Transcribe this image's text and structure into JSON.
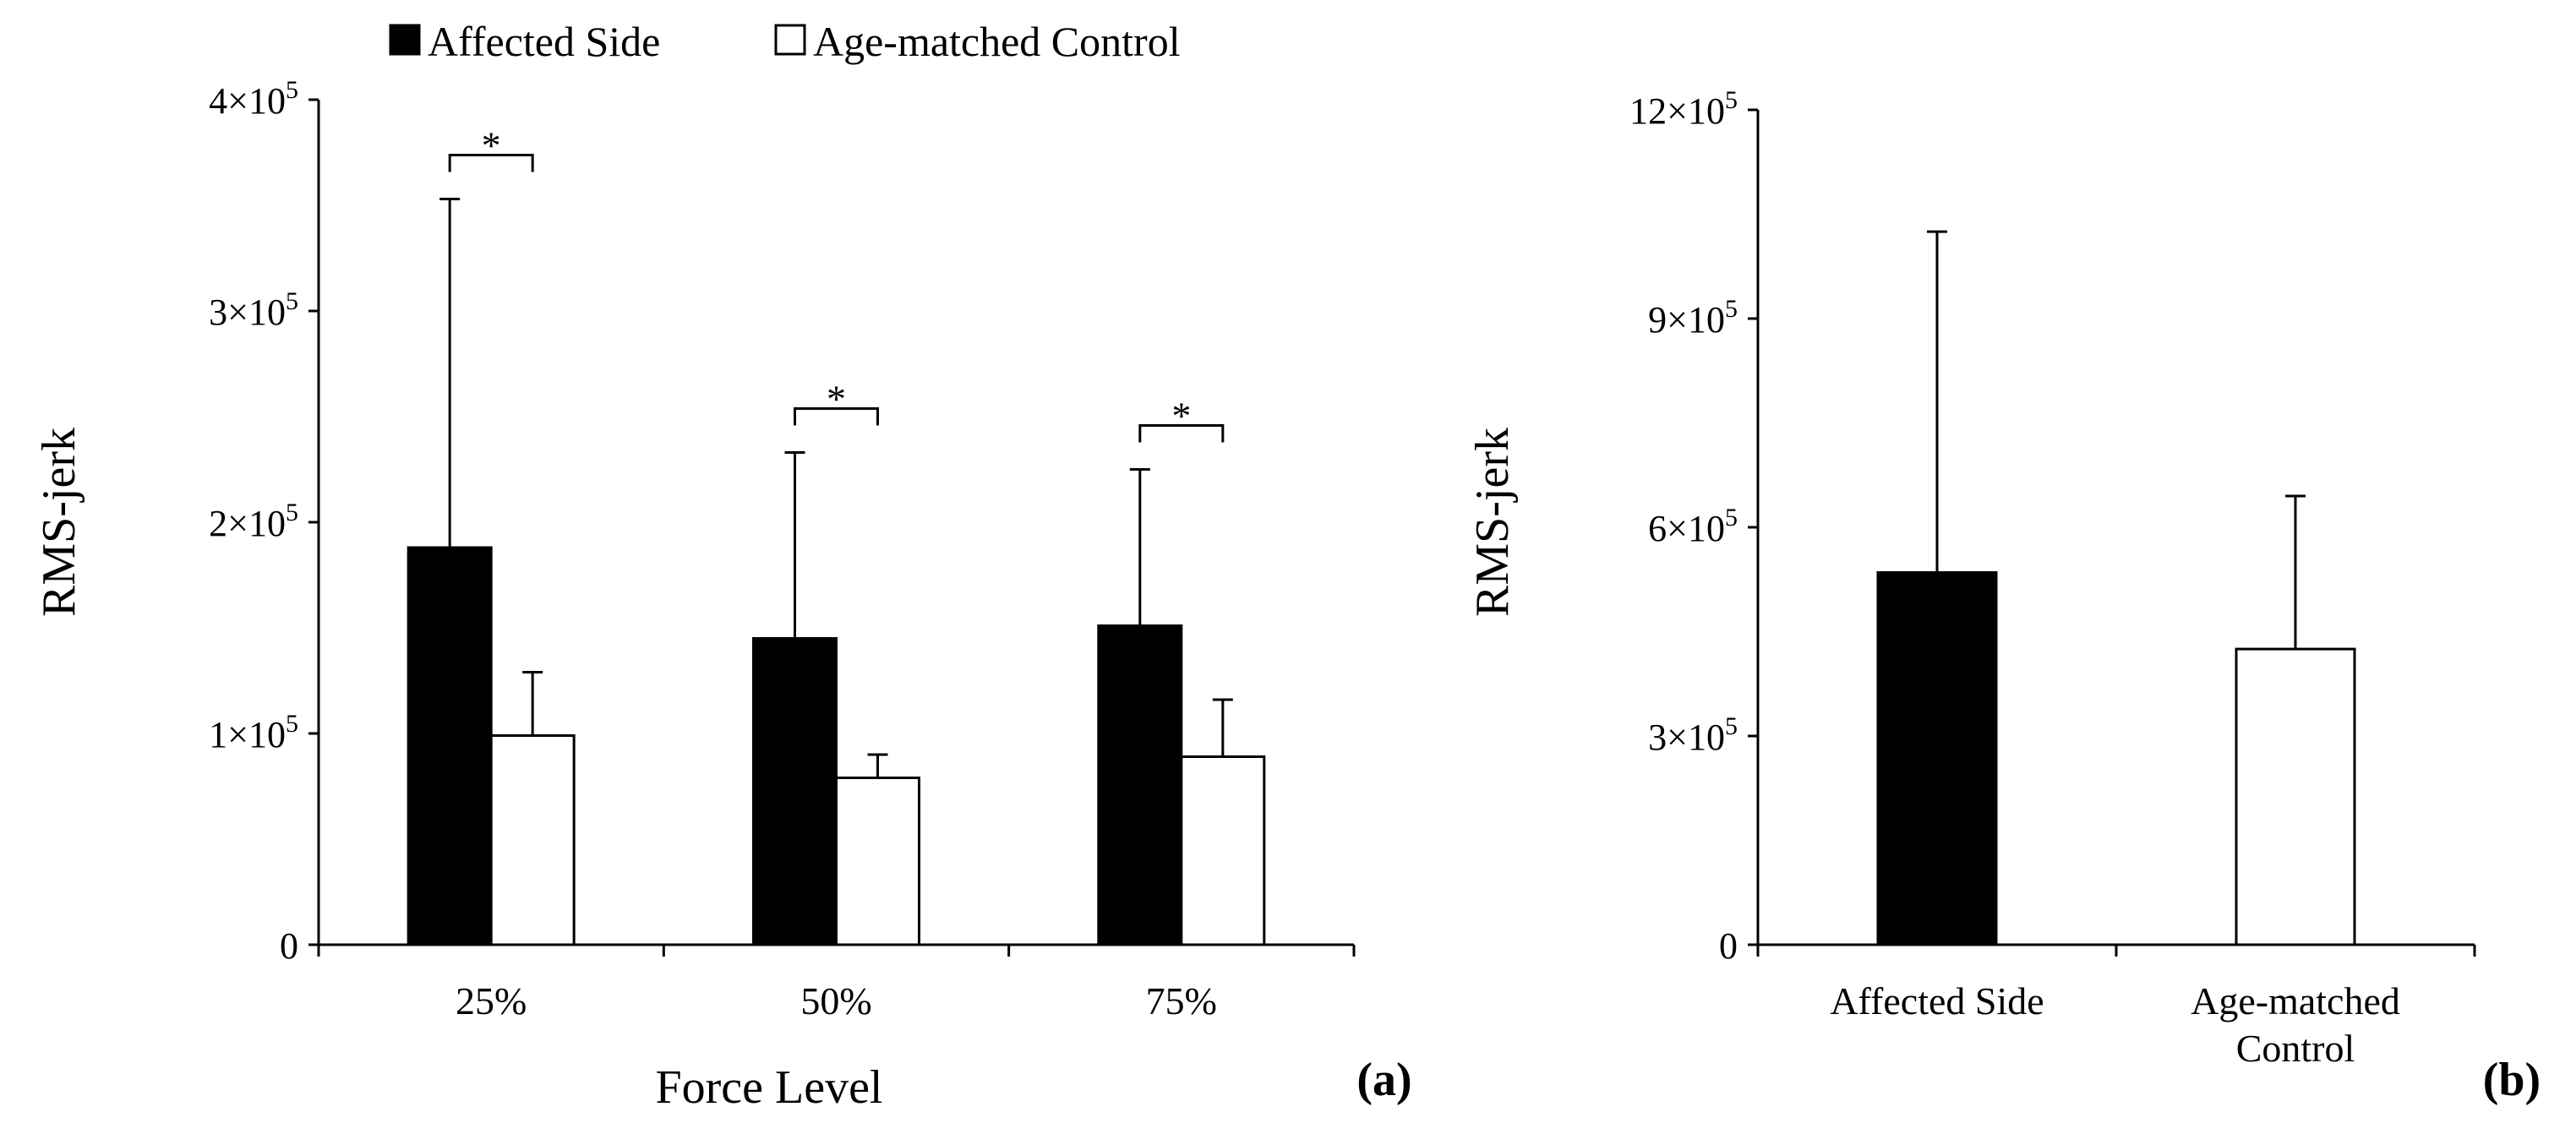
{
  "chart_data": [
    {
      "panel": "(a)",
      "type": "bar",
      "legend": {
        "placement": "top",
        "entries": [
          {
            "name": "Affected Side",
            "color": "#000000"
          },
          {
            "name": "Age-matched Control",
            "color": "#ffffff"
          }
        ]
      },
      "xlabel": "Force Level",
      "ylabel": "RMS-jerk",
      "ylim": [
        0,
        400000
      ],
      "yticks": [
        {
          "value": 0,
          "mant": "0",
          "exp": ""
        },
        {
          "value": 100000,
          "mant": "1×10",
          "exp": "5"
        },
        {
          "value": 200000,
          "mant": "2×10",
          "exp": "5"
        },
        {
          "value": 300000,
          "mant": "3×10",
          "exp": "5"
        },
        {
          "value": 400000,
          "mant": "4×10",
          "exp": "5"
        }
      ],
      "categories": [
        "25%",
        "50%",
        "75%"
      ],
      "series": [
        {
          "name": "Affected Side",
          "color": "#000000",
          "values": [
            188000,
            145000,
            151000
          ],
          "errors": [
            165000,
            88000,
            74000
          ]
        },
        {
          "name": "Age-matched Control",
          "color": "#ffffff",
          "values": [
            99000,
            79000,
            89000
          ],
          "errors": [
            30000,
            11000,
            27000
          ]
        }
      ],
      "significance": [
        {
          "category": 0,
          "label": "*"
        },
        {
          "category": 1,
          "label": "*"
        },
        {
          "category": 2,
          "label": "*"
        }
      ]
    },
    {
      "panel": "(b)",
      "type": "bar",
      "ylabel": "RMS-jerk",
      "ylim": [
        0,
        1200000
      ],
      "yticks": [
        {
          "value": 0,
          "mant": "0",
          "exp": ""
        },
        {
          "value": 300000,
          "mant": "3×10",
          "exp": "5"
        },
        {
          "value": 600000,
          "mant": "6×10",
          "exp": "5"
        },
        {
          "value": 900000,
          "mant": "9×10",
          "exp": "5"
        },
        {
          "value": 1200000,
          "mant": "12×10",
          "exp": "5"
        }
      ],
      "categories": [
        {
          "lines": [
            "Affected Side"
          ]
        },
        {
          "lines": [
            "Age-matched",
            "Control"
          ]
        }
      ],
      "series": [
        {
          "name": "RMS-jerk",
          "values": [
            535000,
            425000
          ],
          "errors": [
            490000,
            220000
          ],
          "colors": [
            "#000000",
            "#ffffff"
          ]
        }
      ]
    }
  ]
}
